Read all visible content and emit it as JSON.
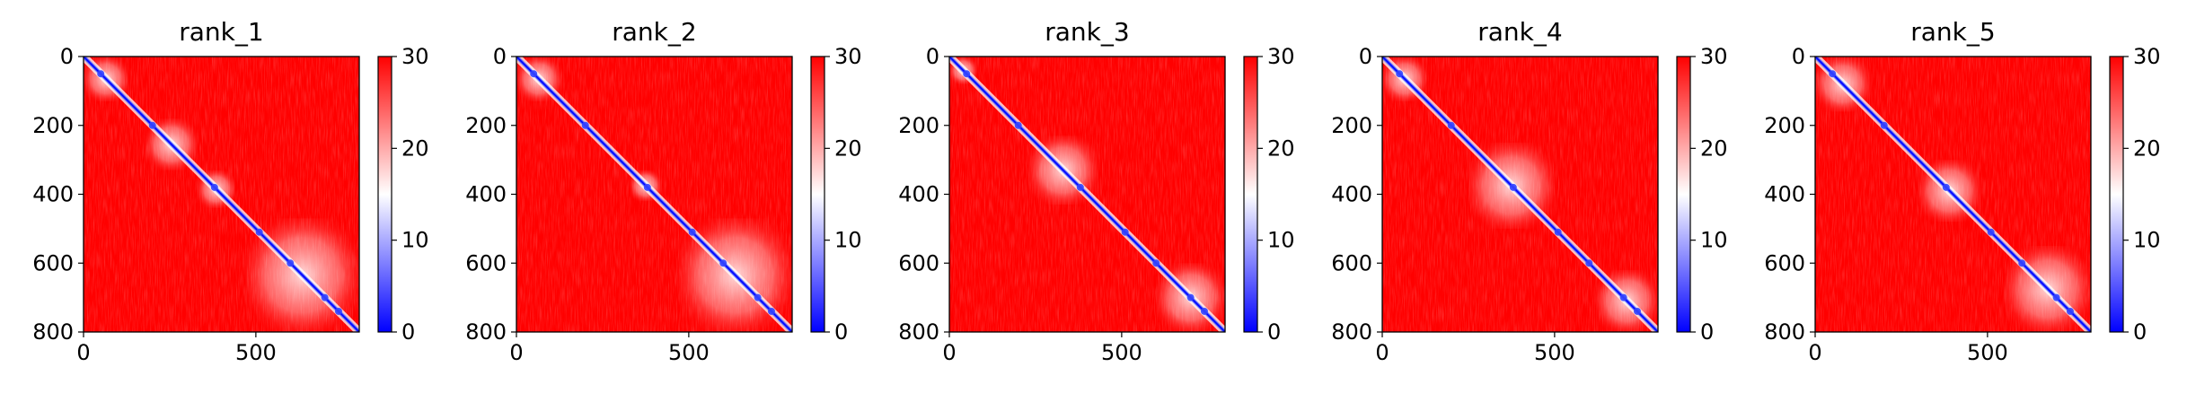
{
  "chart_data": [
    {
      "type": "heatmap",
      "title": "rank_1",
      "xlabel": "",
      "ylabel": "",
      "xlim": [
        0,
        800
      ],
      "ylim": [
        800,
        0
      ],
      "x_ticks": [
        0,
        500
      ],
      "y_ticks": [
        0,
        200,
        400,
        600,
        800
      ],
      "colorbar": {
        "range": [
          0,
          30
        ],
        "ticks": [
          0,
          10,
          20,
          30
        ],
        "colormap": "bwr"
      },
      "description": "near-diagonal blue band",
      "domains": [
        [
          0,
          130
        ],
        [
          180,
          330
        ],
        [
          330,
          440
        ],
        [
          470,
          800
        ]
      ]
    },
    {
      "type": "heatmap",
      "title": "rank_2",
      "xlabel": "",
      "ylabel": "",
      "xlim": [
        0,
        800
      ],
      "ylim": [
        800,
        0
      ],
      "x_ticks": [
        0,
        500
      ],
      "y_ticks": [
        0,
        200,
        400,
        600,
        800
      ],
      "colorbar": {
        "range": [
          0,
          30
        ],
        "ticks": [
          0,
          10,
          20,
          30
        ],
        "colormap": "bwr"
      },
      "domains": [
        [
          0,
          130
        ],
        [
          330,
          420
        ],
        [
          470,
          800
        ]
      ]
    },
    {
      "type": "heatmap",
      "title": "rank_3",
      "xlabel": "",
      "ylabel": "",
      "xlim": [
        0,
        800
      ],
      "ylim": [
        800,
        0
      ],
      "x_ticks": [
        0,
        500
      ],
      "y_ticks": [
        0,
        200,
        400,
        600,
        800
      ],
      "colorbar": {
        "range": [
          0,
          30
        ],
        "ticks": [
          0,
          10,
          20,
          30
        ],
        "colormap": "bwr"
      },
      "domains": [
        [
          0,
          80
        ],
        [
          230,
          430
        ],
        [
          600,
          800
        ]
      ]
    },
    {
      "type": "heatmap",
      "title": "rank_4",
      "xlabel": "",
      "ylabel": "",
      "xlim": [
        0,
        800
      ],
      "ylim": [
        800,
        0
      ],
      "x_ticks": [
        0,
        500
      ],
      "y_ticks": [
        0,
        200,
        400,
        600,
        800
      ],
      "colorbar": {
        "range": [
          0,
          30
        ],
        "ticks": [
          0,
          10,
          20,
          30
        ],
        "colormap": "bwr"
      },
      "domains": [
        [
          0,
          130
        ],
        [
          250,
          500
        ],
        [
          620,
          800
        ]
      ]
    },
    {
      "type": "heatmap",
      "title": "rank_5",
      "xlabel": "",
      "ylabel": "",
      "xlim": [
        0,
        800
      ],
      "ylim": [
        800,
        0
      ],
      "x_ticks": [
        0,
        500
      ],
      "y_ticks": [
        0,
        200,
        400,
        600,
        800
      ],
      "colorbar": {
        "range": [
          0,
          30
        ],
        "ticks": [
          0,
          10,
          20,
          30
        ],
        "colormap": "bwr"
      },
      "domains": [
        [
          0,
          160
        ],
        [
          300,
          480
        ],
        [
          550,
          800
        ]
      ]
    }
  ],
  "colors": {
    "high": "#ff0000",
    "mid": "#ffffff",
    "low": "#0000ff",
    "axis": "#000000"
  }
}
